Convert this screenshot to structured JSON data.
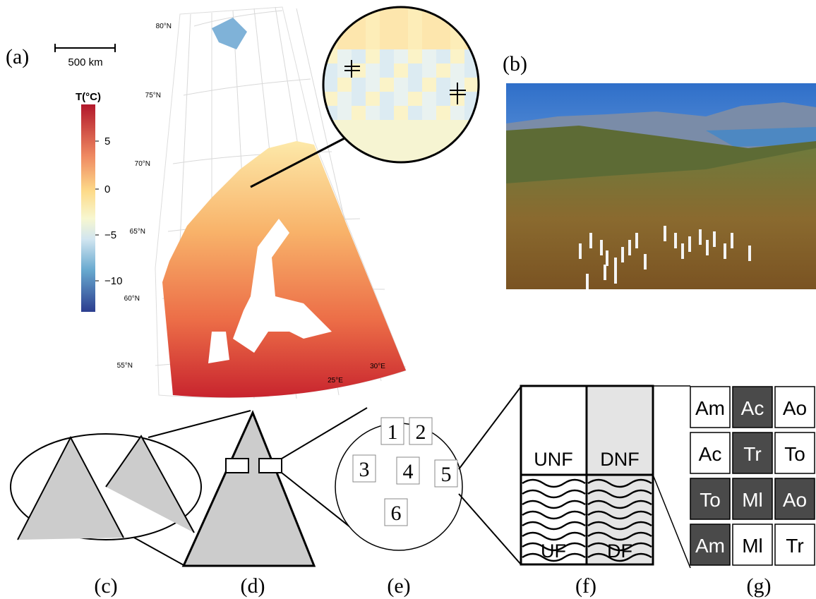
{
  "panels": {
    "a": "(a)",
    "b": "(b)",
    "c": "(c)",
    "d": "(d)",
    "e": "(e)",
    "f": "(f)",
    "g": "(g)"
  },
  "map": {
    "scale_bar": "500 km",
    "latitudes": [
      "80°N",
      "75°N",
      "70°N",
      "65°N",
      "60°N",
      "55°N"
    ],
    "longitudes": [
      "30°E",
      "25°E"
    ]
  },
  "colorbar": {
    "title": "T(°C)",
    "ticks": [
      "5",
      "0",
      "−5",
      "−10"
    ]
  },
  "plots": [
    "1",
    "2",
    "3",
    "4",
    "5",
    "6"
  ],
  "treatments": [
    "UNF",
    "DNF",
    "UF",
    "DF"
  ],
  "grid": [
    [
      {
        "label": "Am",
        "dark": false
      },
      {
        "label": "Ac",
        "dark": true
      },
      {
        "label": "Ao",
        "dark": false
      }
    ],
    [
      {
        "label": "Ac",
        "dark": false
      },
      {
        "label": "Tr",
        "dark": true
      },
      {
        "label": "To",
        "dark": false
      }
    ],
    [
      {
        "label": "To",
        "dark": true
      },
      {
        "label": "Ml",
        "dark": true
      },
      {
        "label": "Ao",
        "dark": true
      }
    ],
    [
      {
        "label": "Am",
        "dark": true
      },
      {
        "label": "Ml",
        "dark": false
      },
      {
        "label": "Tr",
        "dark": false
      }
    ]
  ]
}
